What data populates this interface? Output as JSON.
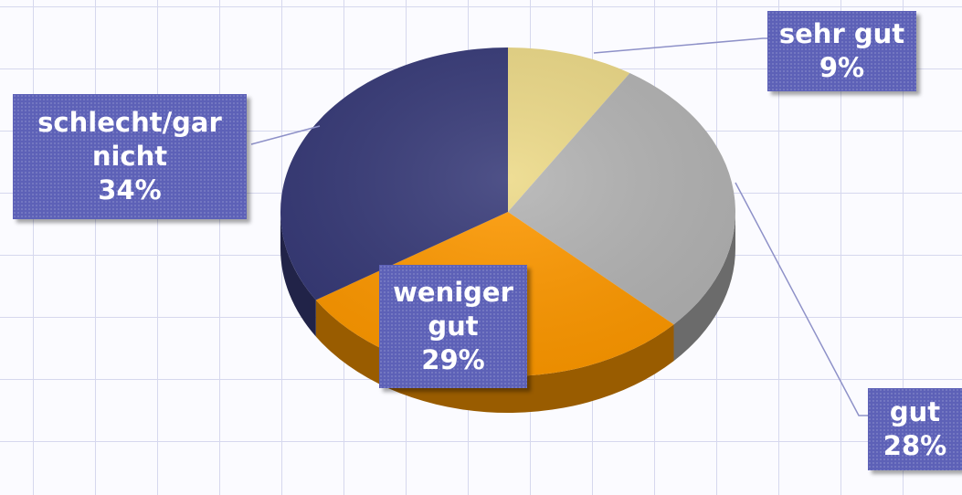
{
  "chart_data": {
    "type": "pie",
    "categories": [
      "sehr gut",
      "gut",
      "weniger gut",
      "schlecht/gar nicht"
    ],
    "values": [
      9,
      28,
      29,
      34
    ],
    "value_labels": [
      "9%",
      "28%",
      "29%",
      "34%"
    ],
    "colors": [
      "#ecd987",
      "#b3b3b3",
      "#ff9900",
      "#373a78"
    ]
  }
}
